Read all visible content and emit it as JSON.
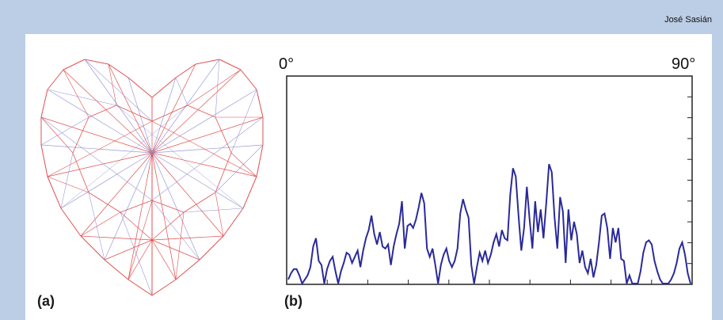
{
  "header": {
    "author": "José Sasián"
  },
  "figure": {
    "panel_a_label": "(a)",
    "panel_b_label": "(b)"
  },
  "colors": {
    "frame": "#bccde6",
    "heart_lines": "#e05050",
    "heart_inner": "#9a9ad6",
    "plot_line": "#2a2a9a"
  },
  "chart_data": {
    "type": "line",
    "x_range_labels": [
      "0°",
      "90°"
    ],
    "xlim": [
      0,
      90
    ],
    "ylim": [
      0,
      1
    ],
    "grid": false,
    "series": [
      {
        "values": [
          0.02,
          0.05,
          0.07,
          0.07,
          0.04,
          0.0,
          0.02,
          0.04,
          0.08,
          0.18,
          0.22,
          0.11,
          0.09,
          0.0,
          0.07,
          0.11,
          0.13,
          0.06,
          0.0,
          0.06,
          0.1,
          0.15,
          0.14,
          0.1,
          0.13,
          0.16,
          0.08,
          0.16,
          0.22,
          0.26,
          0.33,
          0.24,
          0.19,
          0.25,
          0.18,
          0.17,
          0.19,
          0.09,
          0.18,
          0.24,
          0.29,
          0.4,
          0.17,
          0.28,
          0.29,
          0.27,
          0.31,
          0.37,
          0.44,
          0.39,
          0.17,
          0.13,
          0.17,
          0.09,
          0.0,
          0.09,
          0.14,
          0.17,
          0.11,
          0.08,
          0.11,
          0.17,
          0.34,
          0.41,
          0.36,
          0.32,
          0.09,
          0.0,
          0.08,
          0.15,
          0.11,
          0.16,
          0.1,
          0.14,
          0.2,
          0.24,
          0.18,
          0.26,
          0.22,
          0.21,
          0.43,
          0.56,
          0.52,
          0.33,
          0.16,
          0.27,
          0.47,
          0.31,
          0.17,
          0.4,
          0.25,
          0.36,
          0.22,
          0.39,
          0.58,
          0.54,
          0.32,
          0.17,
          0.42,
          0.35,
          0.1,
          0.36,
          0.21,
          0.3,
          0.24,
          0.1,
          0.16,
          0.08,
          0.05,
          0.12,
          0.03,
          0.09,
          0.2,
          0.33,
          0.34,
          0.27,
          0.12,
          0.27,
          0.2,
          0.27,
          0.12,
          0.11,
          0.0,
          0.04,
          0.0,
          0.0,
          0.0,
          0.06,
          0.15,
          0.2,
          0.21,
          0.19,
          0.11,
          0.06,
          0.02,
          0.0,
          0.0,
          0.0,
          0.02,
          0.05,
          0.1,
          0.17,
          0.2,
          0.14,
          0.05,
          0.0
        ]
      }
    ]
  }
}
